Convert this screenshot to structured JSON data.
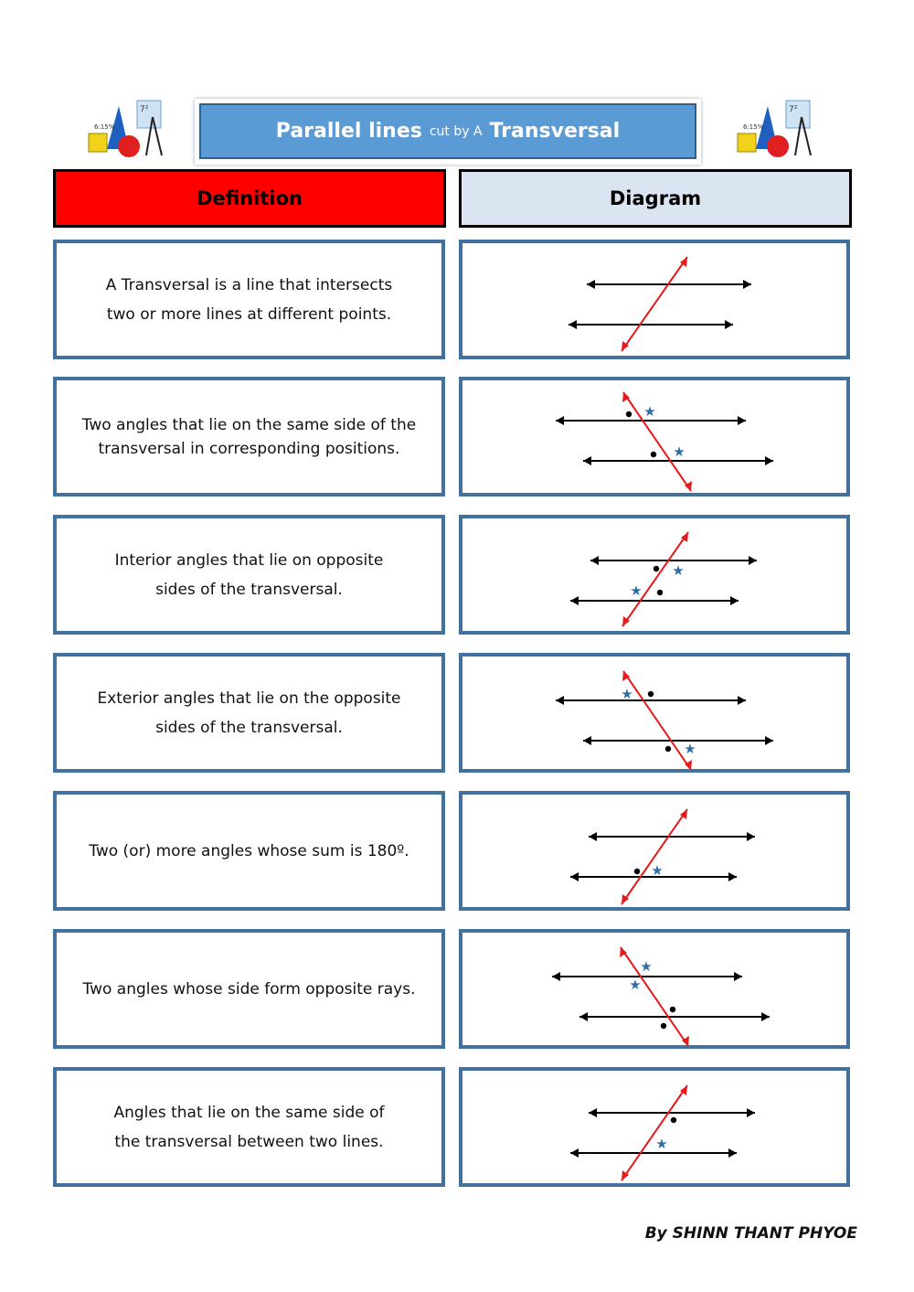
{
  "title": {
    "part1": "Parallel lines",
    "part2": "cut by A",
    "part3": "Transversal"
  },
  "headers": {
    "definition": "Definition",
    "diagram": "Diagram"
  },
  "rows": [
    {
      "lines": [
        "A Transversal is a line that intersects",
        "two or more lines at different points."
      ]
    },
    {
      "lines": [
        "Two angles that lie on the same side of the",
        "transversal in corresponding positions."
      ]
    },
    {
      "lines": [
        "Interior angles that lie on opposite",
        "sides of the transversal."
      ]
    },
    {
      "lines": [
        "Exterior angles that lie on the opposite",
        "sides of the transversal."
      ]
    },
    {
      "lines": [
        "Two (or) more angles whose sum is 180º."
      ]
    },
    {
      "lines": [
        "Two angles whose side form opposite rays."
      ]
    },
    {
      "lines": [
        "Angles that lie on the same side of",
        "the transversal between two lines."
      ]
    }
  ],
  "author": "By SHINN THANT PHYOE",
  "colors": {
    "header_definition": "#ff0000",
    "header_diagram": "#dbe4f1",
    "card_border": "#41719c",
    "title_bg": "#5b9bd5",
    "transversal": "#e8191b",
    "star": "#2e6ea6"
  }
}
